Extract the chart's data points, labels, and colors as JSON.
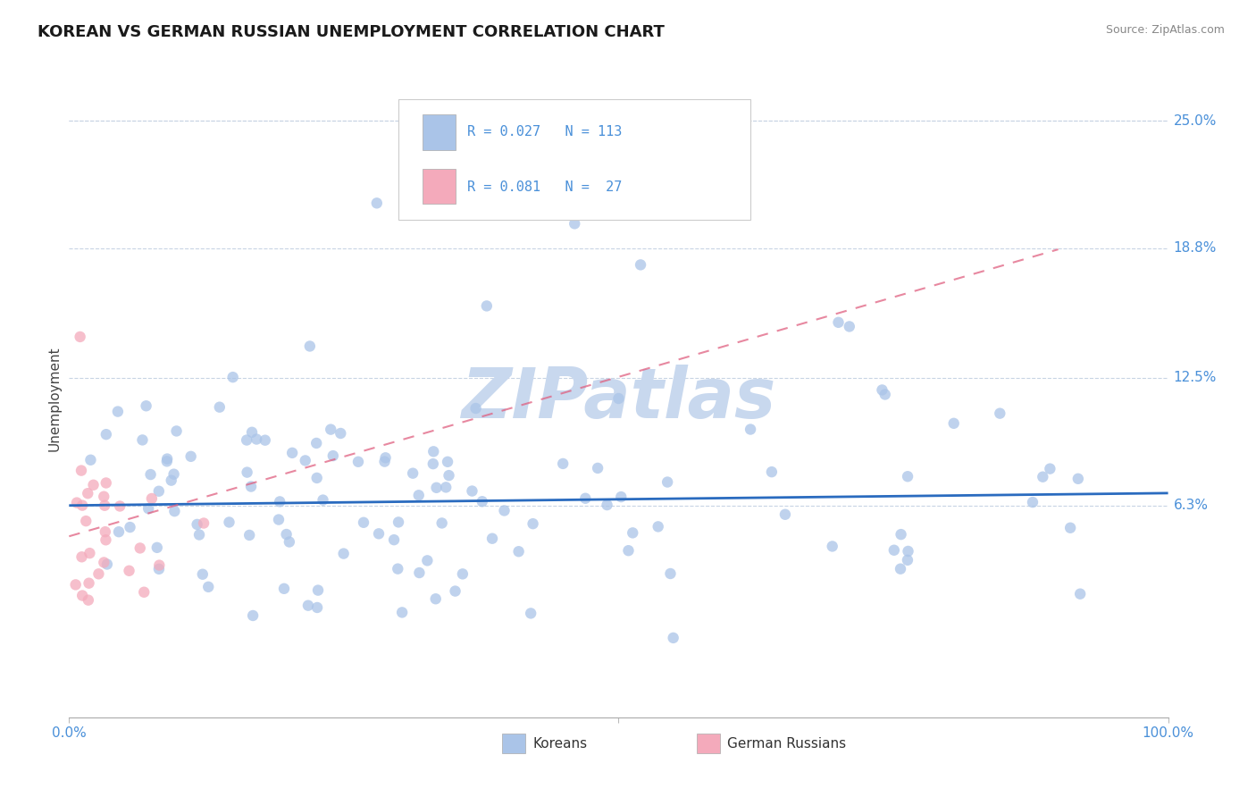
{
  "title": "KOREAN VS GERMAN RUSSIAN UNEMPLOYMENT CORRELATION CHART",
  "source": "Source: ZipAtlas.com",
  "ylabel": "Unemployment",
  "xlim": [
    0.0,
    1.0
  ],
  "ylim": [
    -0.04,
    0.27
  ],
  "yticks": [
    0.063,
    0.125,
    0.188,
    0.25
  ],
  "ytick_labels": [
    "6.3%",
    "12.5%",
    "18.8%",
    "25.0%"
  ],
  "xtick_positions": [
    0.0,
    0.5,
    1.0
  ],
  "xtick_labels": [
    "0.0%",
    "",
    "100.0%"
  ],
  "koreans_color": "#aac4e8",
  "german_russians_color": "#f4aabb",
  "trend_korean_color": "#2a6bbf",
  "trend_german_color": "#e06080",
  "watermark_color": "#c8d8ee",
  "legend_korean_label": "R = 0.027   N = 113",
  "legend_german_label": "R = 0.081   N =  27",
  "tick_label_color": "#4a90d9",
  "tick_fontsize": 11,
  "title_fontsize": 13,
  "ylabel_fontsize": 11,
  "background_color": "#ffffff",
  "grid_color": "#c8d4e4",
  "watermark_fontsize": 56
}
